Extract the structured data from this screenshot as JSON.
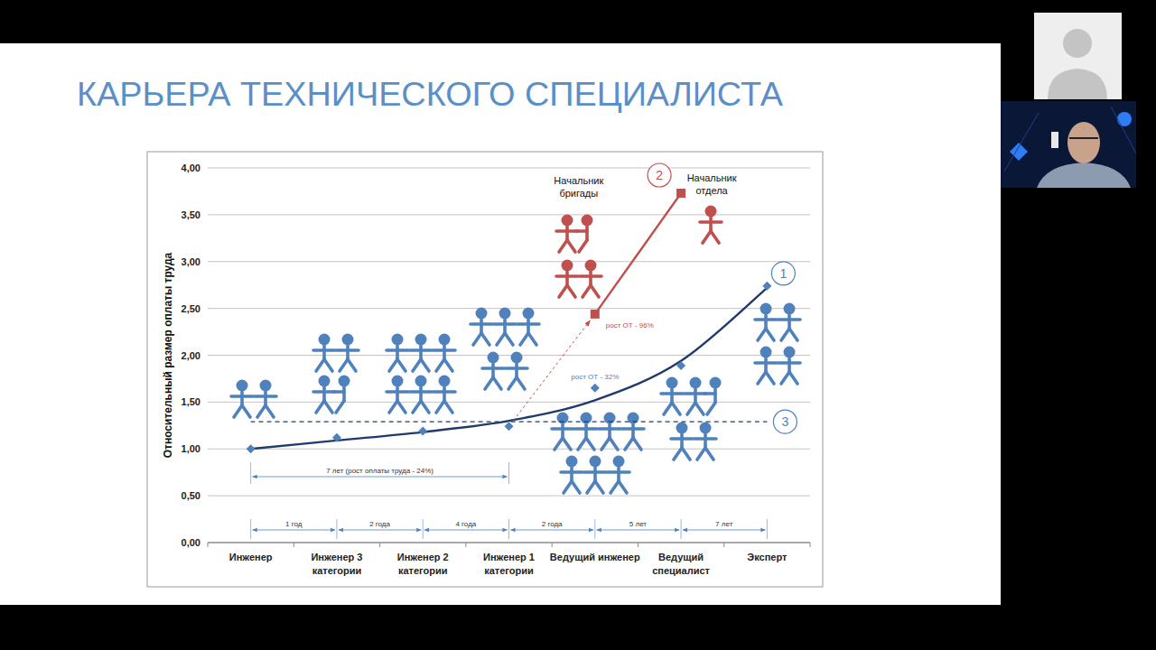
{
  "title": "КАРЬЕРА ТЕХНИЧЕСКОГО СПЕЦИАЛИСТА",
  "chart_data": {
    "type": "line",
    "y_label": "Относительный размер оплаты труда",
    "categories": [
      "Инженер",
      "Инженер 3 категории",
      "Инженер 2 категории",
      "Инженер 1 категории",
      "Ведущий инженер",
      "Ведущий специалист",
      "Эксперт"
    ],
    "series": [
      {
        "name": "1",
        "color": "#1f3b6e",
        "line_style": "solid",
        "marker": "none",
        "values": [
          1.0,
          1.09,
          1.18,
          1.3,
          1.52,
          1.94,
          2.72
        ]
      },
      {
        "type": "scatter",
        "color": "#4f81bd",
        "marker": "diamond",
        "values": [
          1.0,
          1.12,
          1.19,
          1.24,
          1.65,
          1.89,
          2.74
        ]
      },
      {
        "name": "2",
        "color": "#c0504d",
        "line_style": "solid",
        "marker": "square",
        "values": [
          null,
          null,
          null,
          null,
          2.44,
          3.73,
          null
        ]
      },
      {
        "name": "3",
        "color": "#1f3b6e",
        "line_style": "dashed",
        "marker": "none",
        "values": [
          1.29,
          1.29,
          1.29,
          1.29,
          1.29,
          1.29,
          1.29
        ]
      }
    ],
    "ylim": [
      0,
      4
    ],
    "yticks": [
      {
        "value": 0,
        "label": "0,00"
      },
      {
        "value": 0.5,
        "label": "0,50"
      },
      {
        "value": 1,
        "label": "1,00"
      },
      {
        "value": 1.5,
        "label": "1,50"
      },
      {
        "value": 2,
        "label": "2,00"
      },
      {
        "value": 2.5,
        "label": "2,50"
      },
      {
        "value": 3,
        "label": "3,00"
      },
      {
        "value": 3.5,
        "label": "3,50"
      },
      {
        "value": 4,
        "label": "4,00"
      }
    ],
    "grid": true,
    "annotations": [
      "Начальник бригады",
      "Начальник отдела",
      "рост  ОТ  - 96%",
      "рост ОТ - 32%",
      "7 лет (рост оплаты труда - 24%)"
    ],
    "durations": [
      "1 год",
      "2 года",
      "4 года",
      "2 года",
      "5 лет",
      "7 лет"
    ]
  }
}
